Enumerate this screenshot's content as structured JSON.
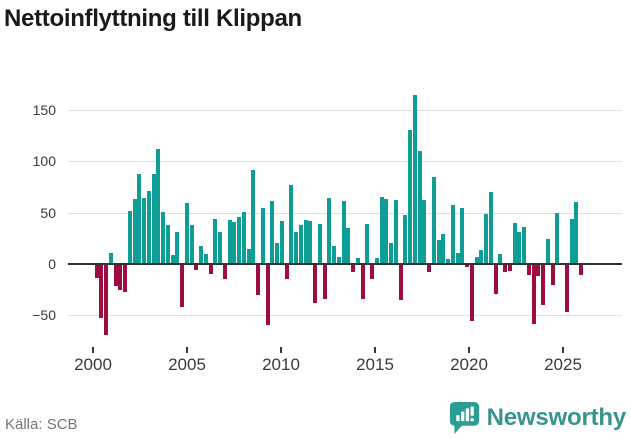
{
  "header": {
    "title": "Nettoinflyttning till Klippan"
  },
  "footer": {
    "source": "Källa: SCB",
    "brand": "Newsworthy",
    "logo_icon": "newsworthy-speech-bubble-bar-chart-icon"
  },
  "colors": {
    "positive_bar": "#0f9e96",
    "negative_bar": "#9e0c41",
    "zero_line": "#333333",
    "gridline": "#e0e0e0",
    "axis_text": "#3b3b3b",
    "title_text": "#1a1a1a",
    "source_text": "#767676",
    "brand_teal": "#38948d",
    "logo_teal": "#2b9d92"
  },
  "chart_data": {
    "type": "bar",
    "title": "Nettoinflyttning till Klippan",
    "frequency": "quarterly",
    "start_period": "2000Q1",
    "end_period": "2025Q3",
    "grid": "horizontal",
    "legend": "none",
    "x_ticks": [
      "2000",
      "2005",
      "2010",
      "2015",
      "2020",
      "2025"
    ],
    "y_ticks": [
      150,
      100,
      50,
      0,
      -50
    ],
    "y_tick_labels": [
      "150",
      "100",
      "50",
      "0",
      "−50"
    ],
    "ylim": [
      -75,
      175
    ],
    "values": [
      -13,
      -52,
      -68,
      11,
      -20,
      -24,
      -26,
      52,
      63,
      88,
      64,
      71,
      88,
      112,
      51,
      38,
      9,
      31,
      -41,
      59,
      38,
      -5,
      18,
      10,
      -9,
      44,
      31,
      -14,
      43,
      41,
      46,
      51,
      15,
      92,
      -29,
      55,
      -58,
      61,
      20,
      42,
      -14,
      77,
      31,
      38,
      43,
      42,
      -37,
      39,
      -33,
      64,
      18,
      7,
      61,
      35,
      -7,
      6,
      -33,
      39,
      -14,
      6,
      65,
      63,
      20,
      62,
      -34,
      48,
      130,
      165,
      110,
      62,
      -7,
      85,
      23,
      29,
      5,
      57,
      11,
      55,
      -2,
      -55,
      7,
      14,
      49,
      70,
      -28,
      10,
      -7,
      -6,
      40,
      31,
      36,
      -10,
      -57,
      -11,
      -39,
      24,
      -19,
      50,
      0,
      -46,
      44,
      60,
      -10
    ]
  }
}
